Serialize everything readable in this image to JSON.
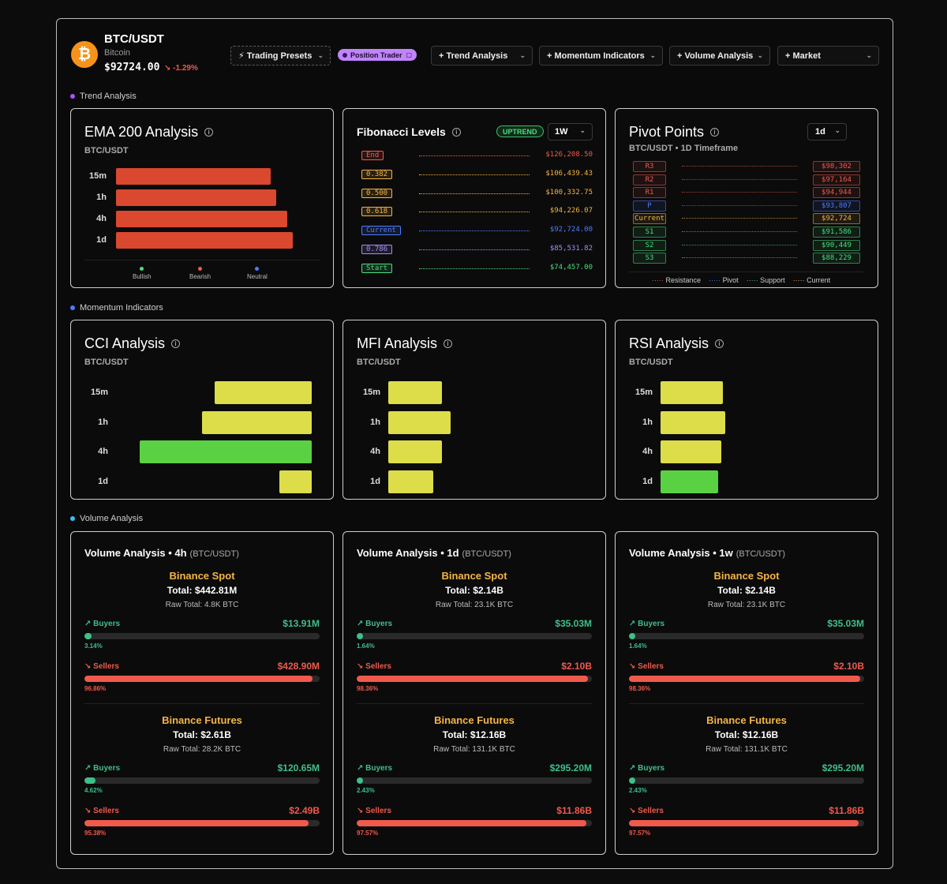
{
  "header": {
    "symbol": "BTC/USDT",
    "name": "Bitcoin",
    "price": "$92724.00",
    "change": "↘ -1.29%",
    "coin_glyph": "₿",
    "buttons": {
      "presets": "⚡ Trading Presets",
      "position": "Position Trader",
      "trend": "+ Trend Analysis",
      "momentum": "+ Momentum Indicators",
      "volume": "+ Volume Analysis",
      "market": "+ Market"
    }
  },
  "sections": {
    "trend": "Trend Analysis",
    "momentum": "Momentum Indicators",
    "volume": "Volume Analysis"
  },
  "ema": {
    "title": "EMA 200 Analysis",
    "subtitle": "BTC/USDT",
    "rows": [
      {
        "label": "15m",
        "value": 0.84
      },
      {
        "label": "1h",
        "value": 0.87
      },
      {
        "label": "4h",
        "value": 0.93
      },
      {
        "label": "1d",
        "value": 0.96
      }
    ],
    "legend": [
      "Bullish",
      "Bearish",
      "Neutral"
    ]
  },
  "fib": {
    "title": "Fibonacci Levels",
    "trend": "UPTREND",
    "timeframe": "1W",
    "rows": [
      {
        "label": "End",
        "value": "$126,208.50",
        "color": "#ef5a4d"
      },
      {
        "label": "0.382",
        "value": "$106,439.43",
        "color": "#f5b544"
      },
      {
        "label": "0.500",
        "value": "$100,332.75",
        "color": "#f5b544"
      },
      {
        "label": "0.618",
        "value": "$94,226.07",
        "color": "#f5b544"
      },
      {
        "label": "Current",
        "value": "$92,724.00",
        "color": "#4f7dff"
      },
      {
        "label": "0.786",
        "value": "$85,531.82",
        "color": "#a78bfa"
      },
      {
        "label": "Start",
        "value": "$74,457.00",
        "color": "#4ade80"
      }
    ]
  },
  "pivot": {
    "title": "Pivot Points",
    "subtitle": "BTC/USDT • 1D Timeframe",
    "timeframe": "1d",
    "rows": [
      {
        "label": "R3",
        "value": "$98,302",
        "color": "#ef5a4d"
      },
      {
        "label": "R2",
        "value": "$97,164",
        "color": "#ef5a4d"
      },
      {
        "label": "R1",
        "value": "$94,944",
        "color": "#ef5a4d"
      },
      {
        "label": "P",
        "value": "$93,807",
        "color": "#4f7dff"
      },
      {
        "label": "Current",
        "value": "$92,724",
        "color": "#f5b544"
      },
      {
        "label": "S1",
        "value": "$91,586",
        "color": "#4ade80"
      },
      {
        "label": "S2",
        "value": "$90,449",
        "color": "#4ade80"
      },
      {
        "label": "S3",
        "value": "$88,229",
        "color": "#4ade80"
      }
    ],
    "legend": [
      "Resistance",
      "Pivot",
      "Support",
      "Current"
    ]
  },
  "cci": {
    "title": "CCI Analysis",
    "subtitle": "BTC/USDT",
    "rows": [
      {
        "label": "15m",
        "value": 0.45,
        "color": "#dddd4a"
      },
      {
        "label": "1h",
        "value": 0.51,
        "color": "#dddd4a"
      },
      {
        "label": "4h",
        "value": 0.8,
        "color": "#5ad142"
      },
      {
        "label": "1d",
        "value": 0.15,
        "color": "#dddd4a"
      }
    ]
  },
  "mfi": {
    "title": "MFI Analysis",
    "subtitle": "BTC/USDT",
    "rows": [
      {
        "label": "15m",
        "value": 0.3,
        "color": "#dddd4a"
      },
      {
        "label": "1h",
        "value": 0.35,
        "color": "#dddd4a"
      },
      {
        "label": "4h",
        "value": 0.3,
        "color": "#dddd4a"
      },
      {
        "label": "1d",
        "value": 0.25,
        "color": "#dddd4a"
      }
    ]
  },
  "rsi": {
    "title": "RSI Analysis",
    "subtitle": "BTC/USDT",
    "rows": [
      {
        "label": "15m",
        "value": 0.35,
        "color": "#dddd4a"
      },
      {
        "label": "1h",
        "value": 0.36,
        "color": "#dddd4a"
      },
      {
        "label": "4h",
        "value": 0.34,
        "color": "#dddd4a"
      },
      {
        "label": "1d",
        "value": 0.32,
        "color": "#5ad142"
      }
    ]
  },
  "volume": [
    {
      "title": "Volume Analysis • 4h",
      "pair": "(BTC/USDT)",
      "spot": {
        "name": "Binance Spot",
        "total": "Total: $442.81M",
        "raw": "Raw Total: 4.8K BTC",
        "buyers": {
          "label": "↗  Buyers",
          "amount": "$13.91M",
          "pct": "3.14%",
          "fill": 3.14
        },
        "sellers": {
          "label": "↘  Sellers",
          "amount": "$428.90M",
          "pct": "96.86%",
          "fill": 96.86
        }
      },
      "futures": {
        "name": "Binance Futures",
        "total": "Total: $2.61B",
        "raw": "Raw Total: 28.2K BTC",
        "buyers": {
          "label": "↗  Buyers",
          "amount": "$120.65M",
          "pct": "4.62%",
          "fill": 4.62
        },
        "sellers": {
          "label": "↘  Sellers",
          "amount": "$2.49B",
          "pct": "95.38%",
          "fill": 95.38
        }
      }
    },
    {
      "title": "Volume Analysis • 1d",
      "pair": "(BTC/USDT)",
      "spot": {
        "name": "Binance Spot",
        "total": "Total: $2.14B",
        "raw": "Raw Total: 23.1K BTC",
        "buyers": {
          "label": "↗  Buyers",
          "amount": "$35.03M",
          "pct": "1.64%",
          "fill": 1.64
        },
        "sellers": {
          "label": "↘  Sellers",
          "amount": "$2.10B",
          "pct": "98.36%",
          "fill": 98.36
        }
      },
      "futures": {
        "name": "Binance Futures",
        "total": "Total: $12.16B",
        "raw": "Raw Total: 131.1K BTC",
        "buyers": {
          "label": "↗  Buyers",
          "amount": "$295.20M",
          "pct": "2.43%",
          "fill": 2.43
        },
        "sellers": {
          "label": "↘  Sellers",
          "amount": "$11.86B",
          "pct": "97.57%",
          "fill": 97.57
        }
      }
    },
    {
      "title": "Volume Analysis • 1w",
      "pair": "(BTC/USDT)",
      "spot": {
        "name": "Binance Spot",
        "total": "Total: $2.14B",
        "raw": "Raw Total: 23.1K BTC",
        "buyers": {
          "label": "↗  Buyers",
          "amount": "$35.03M",
          "pct": "1.64%",
          "fill": 1.64
        },
        "sellers": {
          "label": "↘  Sellers",
          "amount": "$2.10B",
          "pct": "98.36%",
          "fill": 98.36
        }
      },
      "futures": {
        "name": "Binance Futures",
        "total": "Total: $12.16B",
        "raw": "Raw Total: 131.1K BTC",
        "buyers": {
          "label": "↗  Buyers",
          "amount": "$295.20M",
          "pct": "2.43%",
          "fill": 2.43
        },
        "sellers": {
          "label": "↘  Sellers",
          "amount": "$11.86B",
          "pct": "97.57%",
          "fill": 97.57
        }
      }
    }
  ],
  "colors": {
    "bearish": "#d9482f",
    "bullish": "#4ade80",
    "neutral": "#4f7dff",
    "buy": "#3fbf8a",
    "sell": "#ef5a4d",
    "accent": "#f5b544"
  }
}
